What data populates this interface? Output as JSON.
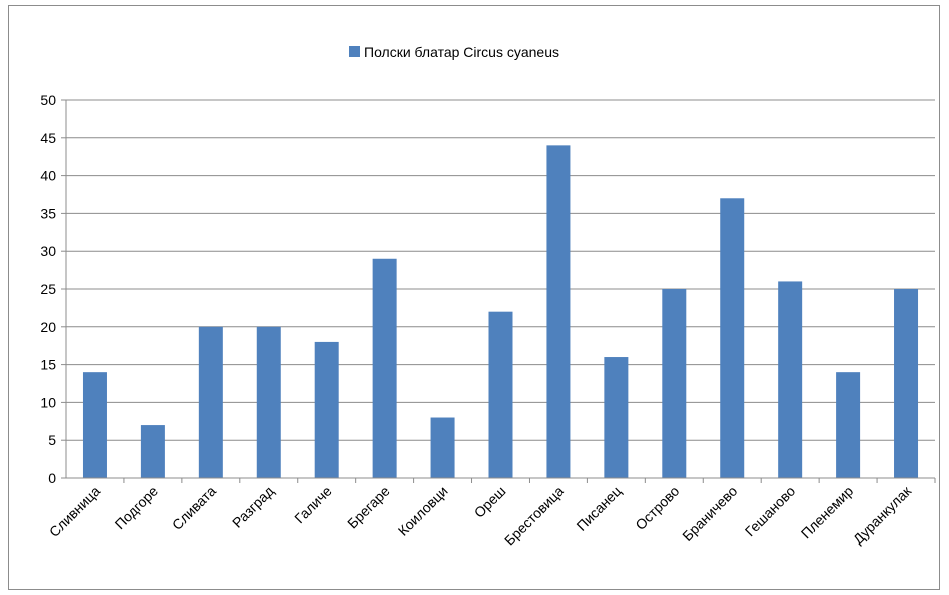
{
  "chart_data": {
    "type": "bar",
    "categories": [
      "Сливница",
      "Подгоре",
      "Сливата",
      "Разград",
      "Галиче",
      "Брегаре",
      "Коиловци",
      "Ореш",
      "Брестовица",
      "Писанец",
      "Острово",
      "Браничево",
      "Гешаново",
      "Пленемир",
      "Дуранкулак"
    ],
    "series": [
      {
        "name": "Полски блатар Circus cyaneus",
        "color": "#4f81bd",
        "values": [
          14,
          7,
          20,
          20,
          18,
          29,
          8,
          22,
          44,
          16,
          25,
          37,
          26,
          14,
          25
        ]
      }
    ],
    "ylim": [
      0,
      50
    ],
    "yticks": [
      0,
      5,
      10,
      15,
      20,
      25,
      30,
      35,
      40,
      45,
      50
    ],
    "grid": true,
    "legend_position": "top-center",
    "xlabel": "",
    "ylabel": ""
  }
}
